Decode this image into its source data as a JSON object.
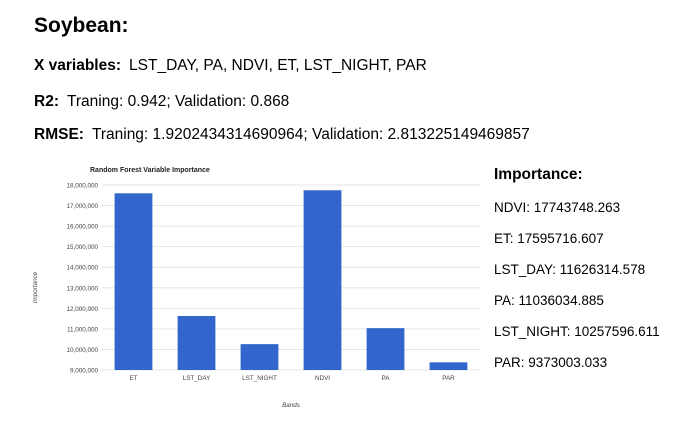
{
  "heading": "Soybean:",
  "x_variables": {
    "label": "X variables:",
    "value": "LST_DAY, PA, NDVI, ET, LST_NIGHT, PAR"
  },
  "r2": {
    "label": "R2:",
    "value": "Traning: 0.942; Validation: 0.868"
  },
  "rmse": {
    "label": "RMSE:",
    "value": "Traning: 1.9202434314690964; Validation: 2.813225149469857"
  },
  "importance": {
    "title": "Importance:",
    "items": [
      "NDVI: 17743748.263",
      "ET: 17595716.607",
      "LST_DAY: 11626314.578",
      "PA: 11036034.885",
      "LST_NIGHT: 10257596.611",
      "PAR: 9373003.033"
    ]
  },
  "colors": {
    "bar": "#3366cc",
    "grid": "#e6e6e6",
    "axis_text": "#444444"
  },
  "chart_data": {
    "type": "bar",
    "title": "Random Forest Variable Importance",
    "xlabel": "Bands",
    "ylabel": "Importance",
    "categories": [
      "ET",
      "LST_DAY",
      "LST_NIGHT",
      "NDVI",
      "PA",
      "PAR"
    ],
    "values": [
      17595716.607,
      11626314.578,
      10257596.611,
      17743748.263,
      11036034.885,
      9373003.033
    ],
    "ylim": [
      9000000,
      18000000
    ],
    "yticks": [
      9000000,
      10000000,
      11000000,
      12000000,
      13000000,
      14000000,
      15000000,
      16000000,
      17000000,
      18000000
    ],
    "ytick_labels": [
      "9,000,000",
      "10,000,000",
      "11,000,000",
      "12,000,000",
      "13,000,000",
      "14,000,000",
      "15,000,000",
      "16,000,000",
      "17,000,000",
      "18,000,000"
    ],
    "grid": true,
    "legend": "none"
  }
}
